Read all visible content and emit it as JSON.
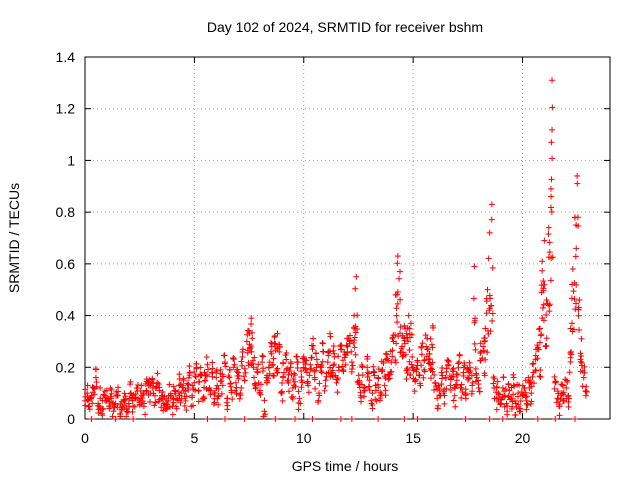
{
  "chart_data": {
    "type": "scatter",
    "title": "Day 102 of 2024, SRMTID for receiver bshm",
    "xlabel": "GPS time / hours",
    "ylabel": "SRMTID / TECUs",
    "xlim": [
      0,
      24
    ],
    "ylim": [
      0,
      1.4
    ],
    "x_ticks": [
      0,
      5,
      10,
      15,
      20
    ],
    "x_tick_labels": [
      "0",
      "5",
      "10",
      "15",
      "20"
    ],
    "y_ticks": [
      0,
      0.2,
      0.4,
      0.6,
      0.8,
      1,
      1.2,
      1.4
    ],
    "y_tick_labels": [
      "0",
      "0.2",
      "0.4",
      "0.6",
      "0.8",
      "1",
      "1.2",
      "1.4"
    ],
    "grid": true,
    "marker": "plus",
    "color": "#ff0000",
    "series": [
      {
        "name": "SRMTID",
        "points": [
          [
            0.0,
            0.07
          ],
          [
            0.1,
            0.1
          ],
          [
            0.2,
            0.05
          ],
          [
            0.3,
            0.09
          ],
          [
            0.4,
            0.12
          ],
          [
            0.5,
            0.16
          ],
          [
            0.6,
            0.06
          ],
          [
            0.7,
            0.08
          ],
          [
            0.8,
            0.04
          ],
          [
            0.9,
            0.09
          ],
          [
            1.0,
            0.07
          ],
          [
            1.1,
            0.05
          ],
          [
            1.2,
            0.08
          ],
          [
            1.3,
            0.03
          ],
          [
            1.4,
            0.06
          ],
          [
            1.5,
            0.09
          ],
          [
            1.6,
            0.02
          ],
          [
            1.7,
            0.05
          ],
          [
            1.8,
            0.07
          ],
          [
            1.9,
            0.04
          ],
          [
            2.0,
            0.06
          ],
          [
            2.1,
            0.1
          ],
          [
            2.2,
            0.05
          ],
          [
            2.3,
            0.08
          ],
          [
            2.4,
            0.12
          ],
          [
            2.5,
            0.07
          ],
          [
            2.6,
            0.09
          ],
          [
            2.7,
            0.06
          ],
          [
            2.8,
            0.11
          ],
          [
            2.9,
            0.13
          ],
          [
            3.0,
            0.1
          ],
          [
            3.1,
            0.12
          ],
          [
            3.2,
            0.09
          ],
          [
            3.3,
            0.14
          ],
          [
            3.4,
            0.11
          ],
          [
            3.5,
            0.08
          ],
          [
            3.6,
            0.06
          ],
          [
            3.7,
            0.04
          ],
          [
            3.8,
            0.07
          ],
          [
            3.9,
            0.09
          ],
          [
            4.0,
            0.05
          ],
          [
            4.1,
            0.11
          ],
          [
            4.2,
            0.08
          ],
          [
            4.3,
            0.13
          ],
          [
            4.4,
            0.1
          ],
          [
            4.5,
            0.15
          ],
          [
            4.6,
            0.07
          ],
          [
            4.7,
            0.12
          ],
          [
            4.8,
            0.18
          ],
          [
            4.9,
            0.09
          ],
          [
            5.0,
            0.14
          ],
          [
            5.1,
            0.2
          ],
          [
            5.2,
            0.11
          ],
          [
            5.3,
            0.17
          ],
          [
            5.4,
            0.08
          ],
          [
            5.5,
            0.15
          ],
          [
            5.6,
            0.21
          ],
          [
            5.7,
            0.12
          ],
          [
            5.8,
            0.18
          ],
          [
            5.9,
            0.1
          ],
          [
            6.0,
            0.16
          ],
          [
            6.1,
            0.09
          ],
          [
            6.2,
            0.19
          ],
          [
            6.3,
            0.13
          ],
          [
            6.4,
            0.22
          ],
          [
            6.5,
            0.08
          ],
          [
            6.6,
            0.16
          ],
          [
            6.7,
            0.11
          ],
          [
            6.8,
            0.2
          ],
          [
            6.9,
            0.14
          ],
          [
            7.0,
            0.18
          ],
          [
            7.1,
            0.1
          ],
          [
            7.2,
            0.24
          ],
          [
            7.3,
            0.15
          ],
          [
            7.4,
            0.3
          ],
          [
            7.5,
            0.34
          ],
          [
            7.6,
            0.39
          ],
          [
            7.7,
            0.2
          ],
          [
            7.8,
            0.13
          ],
          [
            7.9,
            0.18
          ],
          [
            8.0,
            0.11
          ],
          [
            8.1,
            0.22
          ],
          [
            8.2,
            0.03
          ],
          [
            8.3,
            0.16
          ],
          [
            8.4,
            0.2
          ],
          [
            8.5,
            0.26
          ],
          [
            8.6,
            0.21
          ],
          [
            8.7,
            0.29
          ],
          [
            8.8,
            0.33
          ],
          [
            8.9,
            0.28
          ],
          [
            9.0,
            0.1
          ],
          [
            9.1,
            0.18
          ],
          [
            9.2,
            0.23
          ],
          [
            9.3,
            0.14
          ],
          [
            9.4,
            0.2
          ],
          [
            9.5,
            0.12
          ],
          [
            9.6,
            0.17
          ],
          [
            9.7,
            0.22
          ],
          [
            9.8,
            0.08
          ],
          [
            9.9,
            0.15
          ],
          [
            10.0,
            0.24
          ],
          [
            10.1,
            0.19
          ],
          [
            10.2,
            0.13
          ],
          [
            10.3,
            0.21
          ],
          [
            10.4,
            0.27
          ],
          [
            10.5,
            0.16
          ],
          [
            10.6,
            0.23
          ],
          [
            10.7,
            0.1
          ],
          [
            10.8,
            0.2
          ],
          [
            10.9,
            0.26
          ],
          [
            11.0,
            0.15
          ],
          [
            11.1,
            0.22
          ],
          [
            11.2,
            0.33
          ],
          [
            11.3,
            0.18
          ],
          [
            11.4,
            0.24
          ],
          [
            11.5,
            0.14
          ],
          [
            11.6,
            0.2
          ],
          [
            11.7,
            0.27
          ],
          [
            11.8,
            0.19
          ],
          [
            11.9,
            0.25
          ],
          [
            12.0,
            0.28
          ],
          [
            12.1,
            0.3
          ],
          [
            12.2,
            0.22
          ],
          [
            12.3,
            0.4
          ],
          [
            12.4,
            0.55
          ],
          [
            12.5,
            0.14
          ],
          [
            12.6,
            0.09
          ],
          [
            12.7,
            0.17
          ],
          [
            12.8,
            0.12
          ],
          [
            12.9,
            0.2
          ],
          [
            13.0,
            0.15
          ],
          [
            13.1,
            0.06
          ],
          [
            13.2,
            0.18
          ],
          [
            13.3,
            0.11
          ],
          [
            13.4,
            0.16
          ],
          [
            13.5,
            0.09
          ],
          [
            13.6,
            0.19
          ],
          [
            13.7,
            0.13
          ],
          [
            13.8,
            0.25
          ],
          [
            13.9,
            0.17
          ],
          [
            14.0,
            0.22
          ],
          [
            14.1,
            0.3
          ],
          [
            14.2,
            0.48
          ],
          [
            14.3,
            0.63
          ],
          [
            14.4,
            0.57
          ],
          [
            14.5,
            0.28
          ],
          [
            14.6,
            0.36
          ],
          [
            14.7,
            0.33
          ],
          [
            14.8,
            0.4
          ],
          [
            14.9,
            0.37
          ],
          [
            15.0,
            0.2
          ],
          [
            15.1,
            0.15
          ],
          [
            15.2,
            0.22
          ],
          [
            15.3,
            0.17
          ],
          [
            15.4,
            0.25
          ],
          [
            15.5,
            0.19
          ],
          [
            15.6,
            0.28
          ],
          [
            15.7,
            0.23
          ],
          [
            15.8,
            0.31
          ],
          [
            15.9,
            0.36
          ],
          [
            16.0,
            0.14
          ],
          [
            16.1,
            0.08
          ],
          [
            16.2,
            0.12
          ],
          [
            16.3,
            0.18
          ],
          [
            16.4,
            0.1
          ],
          [
            16.5,
            0.16
          ],
          [
            16.6,
            0.21
          ],
          [
            16.7,
            0.13
          ],
          [
            16.8,
            0.19
          ],
          [
            16.9,
            0.09
          ],
          [
            17.0,
            0.15
          ],
          [
            17.1,
            0.22
          ],
          [
            17.2,
            0.12
          ],
          [
            17.3,
            0.18
          ],
          [
            17.4,
            0.1
          ],
          [
            17.5,
            0.16
          ],
          [
            17.6,
            0.2
          ],
          [
            17.7,
            0.13
          ],
          [
            17.8,
            0.59
          ],
          [
            17.9,
            0.17
          ],
          [
            18.0,
            0.12
          ],
          [
            18.1,
            0.26
          ],
          [
            18.2,
            0.28
          ],
          [
            18.3,
            0.35
          ],
          [
            18.4,
            0.5
          ],
          [
            18.5,
            0.72
          ],
          [
            18.6,
            0.83
          ],
          [
            18.7,
            0.12
          ],
          [
            18.8,
            0.08
          ],
          [
            18.9,
            0.1
          ],
          [
            19.0,
            0.06
          ],
          [
            19.1,
            0.12
          ],
          [
            19.2,
            0.09
          ],
          [
            19.3,
            0.05
          ],
          [
            19.4,
            0.11
          ],
          [
            19.5,
            0.08
          ],
          [
            19.6,
            0.13
          ],
          [
            19.7,
            0.06
          ],
          [
            19.8,
            0.1
          ],
          [
            19.9,
            0.04
          ],
          [
            20.0,
            0.09
          ],
          [
            20.1,
            0.12
          ],
          [
            20.2,
            0.07
          ],
          [
            20.3,
            0.14
          ],
          [
            20.4,
            0.1
          ],
          [
            20.5,
            0.18
          ],
          [
            20.6,
            0.23
          ],
          [
            20.7,
            0.27
          ],
          [
            20.8,
            0.35
          ],
          [
            20.9,
            0.61
          ],
          [
            21.0,
            0.69
          ],
          [
            21.1,
            0.46
          ],
          [
            21.2,
            0.74
          ],
          [
            21.3,
            0.89
          ],
          [
            21.35,
            1.31
          ],
          [
            21.5,
            0.14
          ],
          [
            21.6,
            0.08
          ],
          [
            21.7,
            0.05
          ],
          [
            21.8,
            0.1
          ],
          [
            21.9,
            0.07
          ],
          [
            22.0,
            0.12
          ],
          [
            22.1,
            0.09
          ],
          [
            22.2,
            0.35
          ],
          [
            22.3,
            0.58
          ],
          [
            22.4,
            0.78
          ],
          [
            22.5,
            0.94
          ],
          [
            22.6,
            0.46
          ],
          [
            22.7,
            0.31
          ],
          [
            22.8,
            0.16
          ],
          [
            22.9,
            0.09
          ]
        ],
        "zero_points_x": [
          0.3,
          1.4,
          2.2,
          5.6,
          6.4,
          7.3,
          8.7,
          9.6,
          10.4,
          11.7,
          12.2,
          13.4,
          14.6,
          15.2,
          17.4,
          18.5,
          19.1,
          20.7,
          21.5,
          22.4
        ]
      }
    ]
  }
}
